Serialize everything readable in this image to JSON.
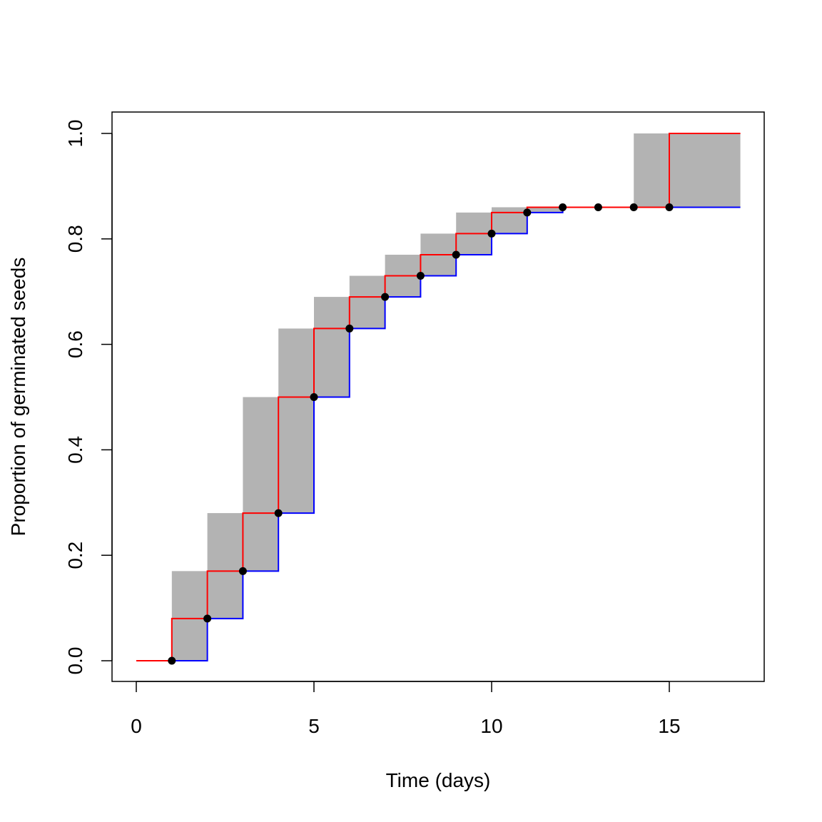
{
  "chart_data": {
    "type": "step",
    "title": "",
    "xlabel": "Time (days)",
    "ylabel": "Proportion of germinated seeds",
    "xlim": [
      -0.68,
      17.68
    ],
    "ylim": [
      -0.04,
      1.04
    ],
    "x_ticks": [
      0,
      5,
      10,
      15
    ],
    "x_tick_labels": [
      "0",
      "5",
      "10",
      "15"
    ],
    "y_ticks": [
      0.0,
      0.2,
      0.4,
      0.6,
      0.8,
      1.0
    ],
    "y_tick_labels": [
      "0.0",
      "0.2",
      "0.4",
      "0.6",
      "0.8",
      "1.0"
    ],
    "points": {
      "x": [
        1,
        2,
        3,
        4,
        5,
        6,
        7,
        8,
        9,
        10,
        11,
        12,
        13,
        14,
        15
      ],
      "y": [
        0.0,
        0.08,
        0.17,
        0.28,
        0.5,
        0.63,
        0.69,
        0.73,
        0.77,
        0.81,
        0.85,
        0.86,
        0.86,
        0.86,
        0.86
      ]
    },
    "series": [
      {
        "name": "lower",
        "color": "#0000ff",
        "x": [
          1,
          2,
          3,
          4,
          5,
          6,
          7,
          8,
          9,
          10,
          11,
          12,
          13,
          14,
          15,
          17
        ],
        "y": [
          0.0,
          0.08,
          0.17,
          0.28,
          0.5,
          0.63,
          0.69,
          0.73,
          0.77,
          0.81,
          0.85,
          0.86,
          0.86,
          0.86,
          0.86,
          0.86
        ]
      },
      {
        "name": "upper",
        "color": "#ff0000",
        "x": [
          0,
          1,
          2,
          3,
          4,
          5,
          6,
          7,
          8,
          9,
          10,
          11,
          12,
          13,
          14,
          15,
          17
        ],
        "y": [
          0.0,
          0.08,
          0.17,
          0.28,
          0.5,
          0.63,
          0.69,
          0.73,
          0.77,
          0.81,
          0.85,
          0.86,
          0.86,
          0.86,
          0.86,
          1.0,
          1.0
        ]
      }
    ],
    "fill_color": "#b3b3b3",
    "point_color": "#000000",
    "grid": false,
    "legend": "none"
  }
}
